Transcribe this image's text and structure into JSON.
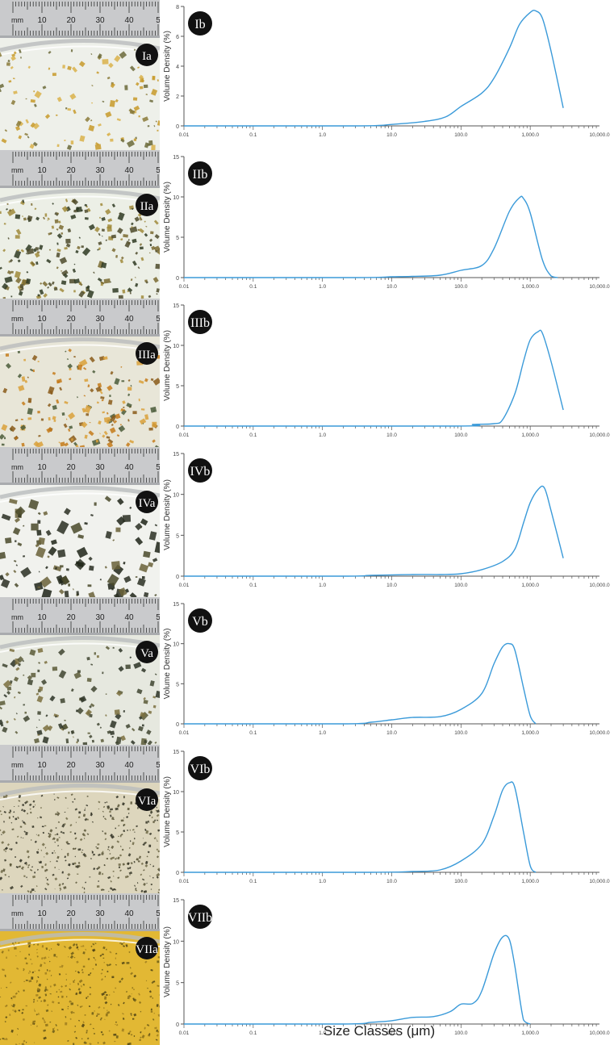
{
  "figure": {
    "x_axis_title": "Size Classes (μm)",
    "ruler_unit": "mm",
    "ruler_ticks": [
      "10",
      "20",
      "30",
      "40",
      "5"
    ]
  },
  "colors": {
    "line": "#3a9ad9",
    "axis": "#555555",
    "badge": "#111111",
    "badge_text": "#ffffff"
  },
  "chart_data": [
    {
      "type": "line",
      "photo_label": "Ia",
      "panel_label": "Ib",
      "ylabel": "Volume Density (%)",
      "xscale": "log",
      "xlim": [
        0.01,
        10000
      ],
      "ylim": [
        0,
        8
      ],
      "yticks": [
        "0",
        "2",
        "4",
        "6",
        "8"
      ],
      "xticks": [
        "0.01",
        "0.1",
        "1.0",
        "10.0",
        "100.0",
        "1,000.0",
        "10,000.0"
      ],
      "x": [
        0.01,
        3,
        10,
        30,
        60,
        100,
        200,
        300,
        500,
        700,
        1000,
        1200,
        1500,
        2000,
        3000
      ],
      "y": [
        0,
        0,
        0.1,
        0.3,
        0.6,
        1.3,
        2.2,
        3.2,
        5.2,
        6.8,
        7.6,
        7.7,
        7.2,
        5.0,
        1.2
      ]
    },
    {
      "type": "line",
      "photo_label": "IIa",
      "panel_label": "IIb",
      "ylabel": "Volume Density (%)",
      "xscale": "log",
      "xlim": [
        0.01,
        10000
      ],
      "ylim": [
        0,
        15
      ],
      "yticks": [
        "0",
        "5",
        "10",
        "15"
      ],
      "xticks": [
        "0.01",
        "0.1",
        "1.0",
        "10.0",
        "100.0",
        "1,000.0",
        "10,000.0"
      ],
      "x": [
        0.01,
        3,
        10,
        20,
        50,
        100,
        200,
        300,
        500,
        700,
        800,
        1000,
        1500,
        2000,
        2500
      ],
      "y": [
        0,
        0,
        0.1,
        0.15,
        0.3,
        0.9,
        1.5,
        3.6,
        8.2,
        9.9,
        9.8,
        8.0,
        2.2,
        0.2,
        0
      ]
    },
    {
      "type": "line",
      "photo_label": "IIIa",
      "panel_label": "IIIb",
      "ylabel": "Volume Density (%)",
      "xscale": "log",
      "xlim": [
        0.01,
        10000
      ],
      "ylim": [
        0,
        15
      ],
      "yticks": [
        "0",
        "5",
        "10",
        "15"
      ],
      "xticks": [
        "0.01",
        "0.1",
        "1.0",
        "10.0",
        "100.0",
        "1,000.0",
        "10,000.0"
      ],
      "x": [
        0.01,
        80,
        150,
        300,
        400,
        600,
        800,
        1000,
        1300,
        1500,
        2000,
        3000
      ],
      "y": [
        0,
        0,
        0.2,
        0.3,
        0.8,
        4.0,
        8.0,
        10.7,
        11.7,
        11.5,
        8.0,
        2.0
      ]
    },
    {
      "type": "line",
      "photo_label": "IVa",
      "panel_label": "IVb",
      "ylabel": "Volume Density (%)",
      "xscale": "log",
      "xlim": [
        0.01,
        10000
      ],
      "ylim": [
        0,
        15
      ],
      "yticks": [
        "0",
        "5",
        "10",
        "15"
      ],
      "xticks": [
        "0.01",
        "0.1",
        "1.0",
        "10.0",
        "100.0",
        "1,000.0",
        "10,000.0"
      ],
      "x": [
        0.01,
        2,
        5,
        20,
        50,
        100,
        200,
        400,
        600,
        800,
        1000,
        1300,
        1600,
        2000,
        3000
      ],
      "y": [
        0,
        0,
        0.1,
        0.2,
        0.2,
        0.3,
        0.8,
        1.8,
        3.3,
        6.5,
        9.0,
        10.6,
        10.8,
        8.0,
        2.2
      ]
    },
    {
      "type": "line",
      "photo_label": "Va",
      "panel_label": "Vb",
      "ylabel": "Volume Density (%)",
      "xscale": "log",
      "xlim": [
        0.01,
        10000
      ],
      "ylim": [
        0,
        15
      ],
      "yticks": [
        "0",
        "5",
        "10",
        "15"
      ],
      "xticks": [
        "0.01",
        "0.1",
        "1.0",
        "10.0",
        "100.0",
        "1,000.0",
        "10,000.0"
      ],
      "x": [
        0.01,
        2,
        5,
        10,
        20,
        50,
        100,
        200,
        300,
        400,
        500,
        600,
        800,
        1000,
        1200
      ],
      "y": [
        0,
        0,
        0.2,
        0.5,
        0.8,
        0.9,
        1.8,
        3.8,
        7.5,
        9.6,
        10.0,
        9.2,
        4.5,
        1.0,
        0
      ]
    },
    {
      "type": "line",
      "photo_label": "VIa",
      "panel_label": "VIb",
      "ylabel": "Volume Density (%)",
      "xscale": "log",
      "xlim": [
        0.01,
        10000
      ],
      "ylim": [
        0,
        15
      ],
      "yticks": [
        "0",
        "5",
        "10",
        "15"
      ],
      "xticks": [
        "0.01",
        "0.1",
        "1.0",
        "10.0",
        "100.0",
        "1,000.0",
        "10,000.0"
      ],
      "x": [
        0.01,
        5,
        20,
        50,
        100,
        200,
        300,
        400,
        500,
        600,
        800,
        1000,
        1200
      ],
      "y": [
        0,
        0,
        0.1,
        0.3,
        1.4,
        3.5,
        7.0,
        10.2,
        11.1,
        10.5,
        5.0,
        0.8,
        0
      ]
    },
    {
      "type": "line",
      "photo_label": "VIIa",
      "panel_label": "VIIb",
      "ylabel": "Volume Density (%)",
      "xscale": "log",
      "xlim": [
        0.01,
        10000
      ],
      "ylim": [
        0,
        15
      ],
      "yticks": [
        "0",
        "5",
        "10",
        "15"
      ],
      "xticks": [
        "0.01",
        "0.1",
        "1.0",
        "10.0",
        "100.0",
        "1,000.0",
        "10,000.0"
      ],
      "x": [
        0.01,
        2,
        5,
        10,
        20,
        40,
        70,
        100,
        150,
        200,
        300,
        400,
        500,
        600,
        800,
        1000
      ],
      "y": [
        0,
        0,
        0.2,
        0.4,
        0.8,
        0.9,
        1.5,
        2.4,
        2.5,
        4.0,
        8.5,
        10.5,
        10.2,
        7.0,
        0.5,
        0
      ]
    }
  ]
}
